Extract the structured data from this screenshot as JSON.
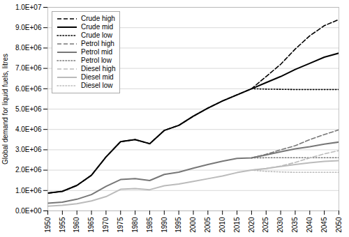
{
  "chart_data": {
    "type": "line",
    "ylabel": "Global demand for liquid fuels, litres",
    "x": [
      1950,
      1955,
      1960,
      1965,
      1970,
      1975,
      1980,
      1985,
      1990,
      1995,
      2000,
      2005,
      2010,
      2015,
      2020,
      2025,
      2030,
      2035,
      2040,
      2045,
      2050
    ],
    "xlim": [
      1950,
      2050
    ],
    "xticks": [
      1950,
      1955,
      1960,
      1965,
      1970,
      1975,
      1980,
      1985,
      1990,
      1995,
      2000,
      2005,
      2010,
      2015,
      2020,
      2025,
      2030,
      2035,
      2040,
      2045,
      2050
    ],
    "ylim": [
      0,
      10000000
    ],
    "yticks": [
      {
        "value": 0,
        "label": "0.0E+00"
      },
      {
        "value": 1000000,
        "label": "1.0E+06"
      },
      {
        "value": 2000000,
        "label": "2.0E+06"
      },
      {
        "value": 3000000,
        "label": "3.0E+06"
      },
      {
        "value": 4000000,
        "label": "4.0E+06"
      },
      {
        "value": 5000000,
        "label": "5.0E+06"
      },
      {
        "value": 6000000,
        "label": "6.0E+06"
      },
      {
        "value": 7000000,
        "label": "7.0E+06"
      },
      {
        "value": 8000000,
        "label": "8.0E+06"
      },
      {
        "value": 9000000,
        "label": "9.0E+06"
      },
      {
        "value": 10000000,
        "label": "1.0E+07"
      }
    ],
    "grid": "y",
    "legend": "upper left",
    "series": [
      {
        "name": "Crude high",
        "color": "#000000",
        "line_style": "dashed",
        "values": [
          870000,
          960000,
          1250000,
          1750000,
          2650000,
          3400000,
          3500000,
          3300000,
          3950000,
          4200000,
          4650000,
          5050000,
          5400000,
          5700000,
          6000000,
          6600000,
          7200000,
          7950000,
          8600000,
          9100000,
          9400000
        ]
      },
      {
        "name": "Crude mid",
        "color": "#000000",
        "line_style": "solid",
        "values": [
          870000,
          960000,
          1250000,
          1750000,
          2650000,
          3400000,
          3500000,
          3300000,
          3950000,
          4200000,
          4650000,
          5050000,
          5400000,
          5700000,
          6000000,
          6300000,
          6600000,
          6950000,
          7250000,
          7550000,
          7750000
        ]
      },
      {
        "name": "Crude low",
        "color": "#000000",
        "line_style": "dotted",
        "values": [
          null,
          null,
          null,
          null,
          null,
          null,
          null,
          null,
          null,
          null,
          null,
          null,
          null,
          null,
          6000000,
          5980000,
          5970000,
          5960000,
          5960000,
          5960000,
          5960000
        ]
      },
      {
        "name": "Petrol high",
        "color": "#777777",
        "line_style": "dashed",
        "values": [
          null,
          null,
          null,
          null,
          null,
          null,
          null,
          null,
          null,
          null,
          null,
          null,
          null,
          null,
          2600000,
          2780000,
          3000000,
          3200000,
          3500000,
          3750000,
          3980000
        ]
      },
      {
        "name": "Petrol mid",
        "color": "#777777",
        "line_style": "solid",
        "values": [
          380000,
          430000,
          570000,
          800000,
          1200000,
          1540000,
          1580000,
          1490000,
          1790000,
          1900000,
          2100000,
          2280000,
          2440000,
          2580000,
          2600000,
          2750000,
          2900000,
          3050000,
          3150000,
          3280000,
          3380000
        ]
      },
      {
        "name": "Petrol low",
        "color": "#777777",
        "line_style": "dotted",
        "values": [
          null,
          null,
          null,
          null,
          null,
          null,
          null,
          null,
          null,
          null,
          null,
          null,
          null,
          null,
          2600000,
          2610000,
          2610000,
          2610000,
          2610000,
          2610000,
          2610000
        ]
      },
      {
        "name": "Diesel high",
        "color": "#bbbbbb",
        "line_style": "dashed",
        "values": [
          null,
          null,
          null,
          null,
          null,
          null,
          null,
          null,
          null,
          null,
          null,
          null,
          null,
          null,
          2000000,
          2080000,
          2200000,
          2380000,
          2600000,
          2800000,
          2960000
        ]
      },
      {
        "name": "Diesel mid",
        "color": "#bbbbbb",
        "line_style": "solid",
        "values": [
          230000,
          270000,
          350000,
          490000,
          700000,
          1060000,
          1100000,
          1040000,
          1230000,
          1320000,
          1450000,
          1580000,
          1710000,
          1880000,
          2000000,
          2080000,
          2180000,
          2280000,
          2360000,
          2430000,
          2470000
        ]
      },
      {
        "name": "Diesel low",
        "color": "#bbbbbb",
        "line_style": "dotted",
        "values": [
          null,
          null,
          null,
          null,
          null,
          null,
          null,
          null,
          null,
          null,
          null,
          null,
          null,
          null,
          2000000,
          1940000,
          1910000,
          1890000,
          1890000,
          1890000,
          1890000
        ]
      }
    ]
  }
}
